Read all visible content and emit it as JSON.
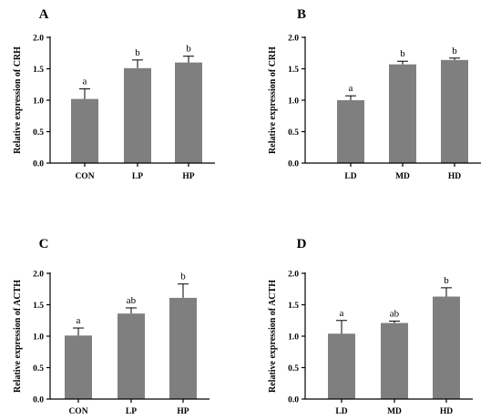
{
  "bar_color": "#7f7f7f",
  "chart_data": [
    {
      "type": "bar",
      "panel": "A",
      "ylabel": "Relative expression of CRH",
      "ylim": [
        0,
        2.0
      ],
      "yticks": [
        "0.0",
        "0.5",
        "1.0",
        "1.5",
        "2.0"
      ],
      "categories": [
        "CON",
        "LP",
        "HP"
      ],
      "values": [
        1.02,
        1.51,
        1.6
      ],
      "errors": [
        0.16,
        0.13,
        0.1
      ],
      "significance": [
        "a",
        "b",
        "b"
      ]
    },
    {
      "type": "bar",
      "panel": "B",
      "ylabel": "Relative expression of CRH",
      "ylim": [
        0,
        2.0
      ],
      "yticks": [
        "0.0",
        "0.5",
        "1.0",
        "1.5",
        "2.0"
      ],
      "categories": [
        "LD",
        "MD",
        "HD"
      ],
      "values": [
        1.0,
        1.57,
        1.64
      ],
      "errors": [
        0.07,
        0.05,
        0.03
      ],
      "significance": [
        "a",
        "b",
        "b"
      ]
    },
    {
      "type": "bar",
      "panel": "C",
      "ylabel": "Relative expression of ACTH",
      "ylim": [
        0,
        2.0
      ],
      "yticks": [
        "0.0",
        "0.5",
        "1.0",
        "1.5",
        "2.0"
      ],
      "categories": [
        "CON",
        "LP",
        "HP"
      ],
      "values": [
        1.01,
        1.36,
        1.61
      ],
      "errors": [
        0.12,
        0.09,
        0.22
      ],
      "significance": [
        "a",
        "ab",
        "b"
      ]
    },
    {
      "type": "bar",
      "panel": "D",
      "ylabel": "Relative expression of ACTH",
      "ylim": [
        0,
        2.0
      ],
      "yticks": [
        "0.0",
        "0.5",
        "1.0",
        "1.5",
        "2.0"
      ],
      "categories": [
        "LD",
        "MD",
        "HD"
      ],
      "values": [
        1.04,
        1.21,
        1.63
      ],
      "errors": [
        0.21,
        0.03,
        0.14
      ],
      "significance": [
        "a",
        "ab",
        "b"
      ]
    }
  ]
}
